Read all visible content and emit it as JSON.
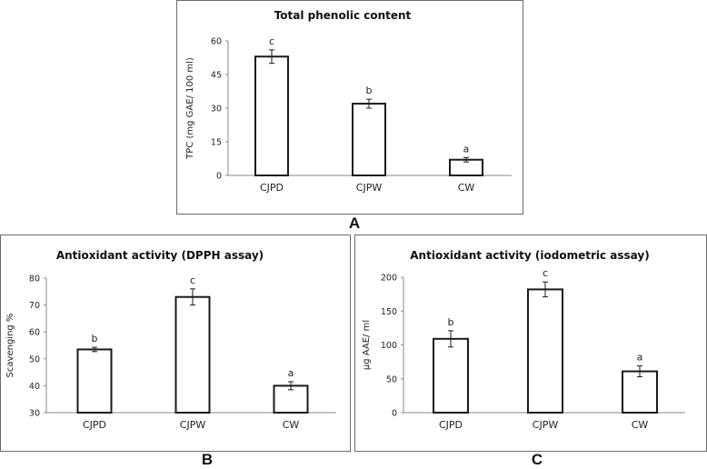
{
  "chart_data": [
    {
      "id": "A",
      "panel_label": "A",
      "type": "bar",
      "title": "Total phenolic content",
      "xlabel": "",
      "ylabel": "TPC (mg GAE/ 100 ml)",
      "categories": [
        "CJPD",
        "CJPW",
        "CW"
      ],
      "values": [
        53,
        32,
        7
      ],
      "errors": [
        3,
        2,
        1
      ],
      "significance": [
        "c",
        "b",
        "a"
      ],
      "ylim": [
        0,
        60
      ],
      "yticks": [
        0,
        15,
        30,
        45,
        60
      ],
      "grid": false
    },
    {
      "id": "B",
      "panel_label": "B",
      "type": "bar",
      "title": "Antioxidant activity (DPPH assay)",
      "xlabel": "",
      "ylabel": "Scavenging %",
      "categories": [
        "CJPD",
        "CJPW",
        "CW"
      ],
      "values": [
        53.5,
        73,
        40
      ],
      "errors": [
        0.8,
        3,
        1.5
      ],
      "significance": [
        "b",
        "c",
        "a"
      ],
      "ylim": [
        30,
        80
      ],
      "yticks": [
        30,
        40,
        50,
        60,
        70,
        80
      ],
      "grid": false
    },
    {
      "id": "C",
      "panel_label": "C",
      "type": "bar",
      "title": "Antioxidant activity (iodometric assay)",
      "xlabel": "",
      "ylabel": "µg AAE/ ml",
      "categories": [
        "CJPD",
        "CJPW",
        "CW"
      ],
      "values": [
        109,
        182,
        61
      ],
      "errors": [
        12,
        11,
        8
      ],
      "significance": [
        "b",
        "c",
        "a"
      ],
      "ylim": [
        0,
        200
      ],
      "yticks": [
        0,
        50,
        100,
        150,
        200
      ],
      "grid": false
    }
  ]
}
